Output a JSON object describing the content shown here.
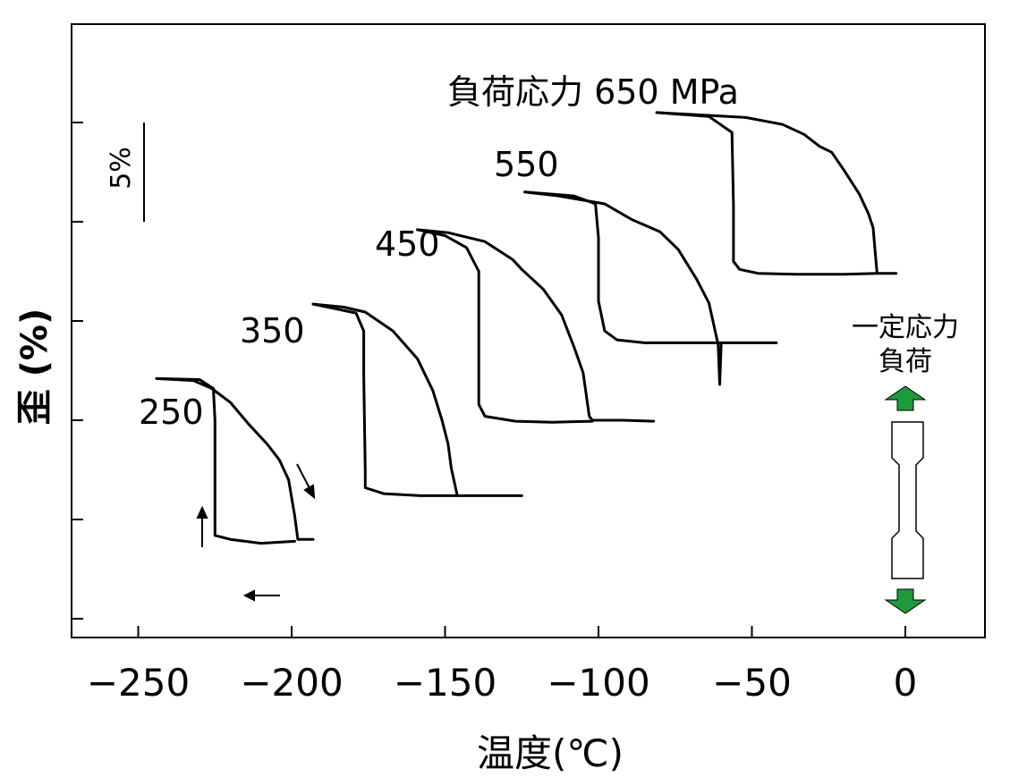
{
  "chart_data": {
    "type": "line",
    "title": "負荷応力 650 MPa",
    "xlabel": "温度(℃)",
    "ylabel": "歪 (%)",
    "xlim": [
      -270,
      28
    ],
    "x_ticks": [
      -250,
      -200,
      -150,
      -100,
      -50,
      0
    ],
    "x_tick_labels": [
      "−250",
      "−200",
      "−150",
      "−100",
      "−50",
      "0"
    ],
    "y_scale_bar": "5%",
    "series": [
      {
        "name": "250",
        "cooling": [
          [
            -244,
            2.1
          ],
          [
            -232,
            2.0
          ],
          [
            -226,
            1.6
          ],
          [
            -220,
            0.9
          ],
          [
            -214,
            -0.2
          ],
          [
            -208,
            -1.2
          ],
          [
            -204,
            -2.0
          ],
          [
            -201,
            -3.0
          ],
          [
            -199,
            -4.8
          ],
          [
            -198,
            -6.0
          ],
          [
            -193,
            -6.0
          ]
        ],
        "heating": [
          [
            -199,
            -6.1
          ],
          [
            -210,
            -6.2
          ],
          [
            -220,
            -6.0
          ],
          [
            -225,
            -5.8
          ],
          [
            -225,
            0.0
          ],
          [
            -225.5,
            1.6
          ],
          [
            -230,
            2.05
          ],
          [
            -244,
            2.1
          ]
        ]
      },
      {
        "name": "350",
        "cooling": [
          [
            -193,
            5.85
          ],
          [
            -183,
            5.7
          ],
          [
            -176,
            5.45
          ],
          [
            -167,
            4.5
          ],
          [
            -159,
            3.1
          ],
          [
            -154,
            1.5
          ],
          [
            -151,
            0.0
          ],
          [
            -149,
            -1.2
          ],
          [
            -148,
            -2.4
          ],
          [
            -146,
            -3.8
          ],
          [
            -136,
            -3.8
          ],
          [
            -125,
            -3.8
          ]
        ],
        "heating": [
          [
            -146,
            -3.8
          ],
          [
            -158,
            -3.8
          ],
          [
            -170,
            -3.7
          ],
          [
            -176,
            -3.4
          ],
          [
            -176,
            -2.6
          ],
          [
            -176.5,
            2.3
          ],
          [
            -176.5,
            4.5
          ],
          [
            -179,
            5.4
          ],
          [
            -193,
            5.85
          ]
        ]
      },
      {
        "name": "450",
        "cooling": [
          [
            -159,
            9.6
          ],
          [
            -149,
            9.45
          ],
          [
            -137,
            9.0
          ],
          [
            -128,
            8.1
          ],
          [
            -125,
            7.6
          ],
          [
            -118,
            6.6
          ],
          [
            -112,
            5.3
          ],
          [
            -108,
            3.7
          ],
          [
            -105,
            2.4
          ],
          [
            -103,
            0.2
          ],
          [
            -102,
            0.0
          ],
          [
            -92,
            0.0
          ],
          [
            -82,
            -0.05
          ]
        ],
        "heating": [
          [
            -102,
            -0.05
          ],
          [
            -115,
            -0.1
          ],
          [
            -127,
            -0.05
          ],
          [
            -137,
            0.2
          ],
          [
            -139,
            0.8
          ],
          [
            -139,
            4.5
          ],
          [
            -139,
            7.5
          ],
          [
            -143,
            8.7
          ],
          [
            -150,
            9.3
          ],
          [
            -159,
            9.6
          ]
        ]
      },
      {
        "name": "550",
        "cooling": [
          [
            -124,
            11.5
          ],
          [
            -113,
            11.3
          ],
          [
            -98,
            10.9
          ],
          [
            -89,
            10.1
          ],
          [
            -80,
            9.5
          ],
          [
            -74,
            8.6
          ],
          [
            -68,
            7.1
          ],
          [
            -64,
            5.9
          ],
          [
            -61,
            3.8
          ],
          [
            -60.5,
            1.8
          ],
          [
            -60,
            3.9
          ],
          [
            -50,
            3.9
          ],
          [
            -42,
            3.9
          ]
        ],
        "heating": [
          [
            -60,
            3.9
          ],
          [
            -70,
            3.9
          ],
          [
            -85,
            3.9
          ],
          [
            -94,
            4.05
          ],
          [
            -98,
            4.5
          ],
          [
            -100,
            6.0
          ],
          [
            -100,
            9.2
          ],
          [
            -101,
            10.9
          ],
          [
            -108,
            11.3
          ],
          [
            -124,
            11.5
          ]
        ]
      },
      {
        "name": "650",
        "cooling": [
          [
            -81,
            15.5
          ],
          [
            -69,
            15.4
          ],
          [
            -52,
            15.25
          ],
          [
            -40,
            14.9
          ],
          [
            -33,
            14.4
          ],
          [
            -28,
            13.8
          ],
          [
            -24,
            13.5
          ],
          [
            -20,
            12.6
          ],
          [
            -15,
            11.4
          ],
          [
            -12,
            10.4
          ],
          [
            -10.5,
            9.7
          ],
          [
            -9.5,
            7.9
          ],
          [
            -9.2,
            7.4
          ],
          [
            -6,
            7.4
          ],
          [
            -3,
            7.4
          ]
        ],
        "heating": [
          [
            -9.2,
            7.4
          ],
          [
            -20,
            7.35
          ],
          [
            -35,
            7.35
          ],
          [
            -48,
            7.4
          ],
          [
            -54,
            7.6
          ],
          [
            -56,
            8.0
          ],
          [
            -56,
            10.8
          ],
          [
            -56.5,
            14.5
          ],
          [
            -64,
            15.3
          ],
          [
            -81,
            15.5
          ]
        ]
      }
    ],
    "annotations": [
      "負荷応力 650 MPa",
      "550",
      "450",
      "350",
      "250"
    ],
    "inset": {
      "line1": "一定応力",
      "line2": "負荷",
      "arrow_color": "#1e9a3c"
    }
  }
}
